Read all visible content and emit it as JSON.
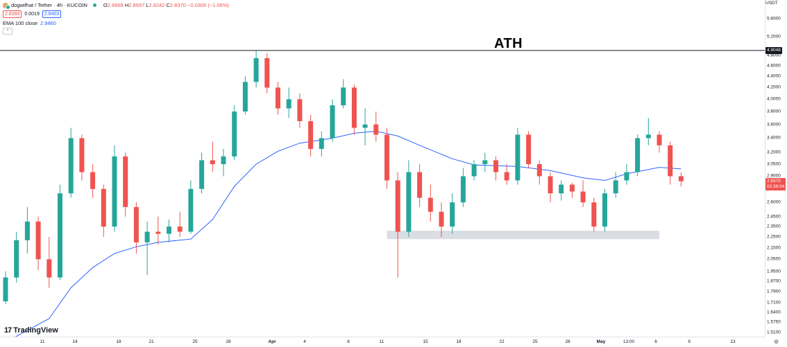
{
  "legend": {
    "symbol": "dogwifhat / Tether · 4h · KUCOIN",
    "open_label": "O",
    "open": "2.8668",
    "high_label": "H",
    "high": "2.8997",
    "low_label": "L",
    "low": "2.8242",
    "close_label": "C",
    "close": "2.8370",
    "change": "−0.0305 (−1.06%)",
    "bid": "2.8384",
    "spread": "0.0019",
    "ask": "2.8403",
    "indicator_label": "EMA 100 close",
    "indicator_value": "2.9860",
    "collapse_glyph": "^"
  },
  "annotation": {
    "ath": "ATH"
  },
  "price_axis": {
    "currency": "USDT",
    "ticks": [
      "5.6000",
      "5.2000",
      "4.8000",
      "4.6000",
      "4.4000",
      "4.2000",
      "4.0000",
      "3.8000",
      "3.6000",
      "3.4000",
      "3.2000",
      "3.0500",
      "2.9000",
      "2.6000",
      "2.4500",
      "2.3500",
      "2.2500",
      "2.1500",
      "2.0500",
      "1.9500",
      "1.8700",
      "1.7900",
      "1.7100",
      "1.6400",
      "1.5750",
      "1.5100"
    ],
    "ath_price": "4.9048",
    "last_price": "2.8370",
    "countdown": "02:39:04"
  },
  "time_axis": {
    "labels": [
      {
        "text": "11",
        "bold": false
      },
      {
        "text": "14",
        "bold": false
      },
      {
        "text": "18",
        "bold": false
      },
      {
        "text": "21",
        "bold": false
      },
      {
        "text": "25",
        "bold": false
      },
      {
        "text": "28",
        "bold": false
      },
      {
        "text": "Apr",
        "bold": true
      },
      {
        "text": "4",
        "bold": false
      },
      {
        "text": "8",
        "bold": false
      },
      {
        "text": "11",
        "bold": false
      },
      {
        "text": "15",
        "bold": false
      },
      {
        "text": "18",
        "bold": false
      },
      {
        "text": "22",
        "bold": false
      },
      {
        "text": "25",
        "bold": false
      },
      {
        "text": "28",
        "bold": false
      },
      {
        "text": "May",
        "bold": true
      },
      {
        "text": "13:00",
        "bold": false
      },
      {
        "text": "6",
        "bold": false
      },
      {
        "text": "9",
        "bold": false
      },
      {
        "text": "13",
        "bold": false
      }
    ]
  },
  "branding": {
    "logo_mark": "17",
    "logo_text": "TradingView"
  },
  "settings_icon": "gear-icon",
  "colors": {
    "up": "#26a69a",
    "down": "#ef5350",
    "ema": "#2962ff",
    "zone": "#d1d4dc",
    "ath_line": "#131722"
  },
  "chart_data": {
    "type": "candlestick",
    "symbol": "dogwifhat / Tether",
    "interval": "4h",
    "exchange": "KUCOIN",
    "x_range": [
      "Mar 8",
      "May 13"
    ],
    "y_range": [
      1.48,
      5.7
    ],
    "y_scale": "log",
    "ath_level": 4.9048,
    "support_zone": {
      "from": "Apr 12",
      "to": "May 7",
      "low": 2.23,
      "high": 2.31
    },
    "ema100": [
      {
        "x": "Mar 8",
        "y": 1.45
      },
      {
        "x": "Mar 12",
        "y": 1.6
      },
      {
        "x": "Mar 14",
        "y": 1.82
      },
      {
        "x": "Mar 16",
        "y": 1.98
      },
      {
        "x": "Mar 18",
        "y": 2.1
      },
      {
        "x": "Mar 20",
        "y": 2.16
      },
      {
        "x": "Mar 22",
        "y": 2.2
      },
      {
        "x": "Mar 25",
        "y": 2.23
      },
      {
        "x": "Mar 27",
        "y": 2.42
      },
      {
        "x": "Mar 29",
        "y": 2.78
      },
      {
        "x": "Mar 31",
        "y": 3.05
      },
      {
        "x": "Apr 2",
        "y": 3.22
      },
      {
        "x": "Apr 4",
        "y": 3.33
      },
      {
        "x": "Apr 7",
        "y": 3.4
      },
      {
        "x": "Apr 9",
        "y": 3.47
      },
      {
        "x": "Apr 11",
        "y": 3.5
      },
      {
        "x": "Apr 13",
        "y": 3.43
      },
      {
        "x": "Apr 15",
        "y": 3.3
      },
      {
        "x": "Apr 18",
        "y": 3.12
      },
      {
        "x": "Apr 20",
        "y": 3.04
      },
      {
        "x": "Apr 24",
        "y": 3.02
      },
      {
        "x": "Apr 27",
        "y": 2.97
      },
      {
        "x": "Apr 30",
        "y": 2.88
      },
      {
        "x": "May 2",
        "y": 2.85
      },
      {
        "x": "May 4",
        "y": 2.93
      },
      {
        "x": "May 7",
        "y": 3.01
      },
      {
        "x": "May 9",
        "y": 2.99
      }
    ],
    "candles": [
      {
        "x": "Mar 8",
        "o": 1.72,
        "h": 1.95,
        "l": 1.7,
        "c": 1.9
      },
      {
        "x": "Mar 9",
        "o": 1.9,
        "h": 2.3,
        "l": 1.86,
        "c": 2.22
      },
      {
        "x": "Mar 10",
        "o": 2.22,
        "h": 2.55,
        "l": 2.1,
        "c": 2.4
      },
      {
        "x": "Mar 11",
        "o": 2.4,
        "h": 2.45,
        "l": 1.96,
        "c": 2.05
      },
      {
        "x": "Mar 12",
        "o": 2.05,
        "h": 2.25,
        "l": 1.82,
        "c": 1.9
      },
      {
        "x": "Mar 13",
        "o": 1.9,
        "h": 2.8,
        "l": 1.88,
        "c": 2.7
      },
      {
        "x": "Mar 14",
        "o": 2.7,
        "h": 3.55,
        "l": 2.65,
        "c": 3.4
      },
      {
        "x": "Mar 15",
        "o": 3.4,
        "h": 3.45,
        "l": 2.85,
        "c": 2.95
      },
      {
        "x": "Mar 16",
        "o": 2.95,
        "h": 3.05,
        "l": 2.65,
        "c": 2.75
      },
      {
        "x": "Mar 17",
        "o": 2.75,
        "h": 2.8,
        "l": 2.25,
        "c": 2.35
      },
      {
        "x": "Mar 18",
        "o": 2.35,
        "h": 3.3,
        "l": 2.3,
        "c": 3.15
      },
      {
        "x": "Mar 19",
        "o": 3.15,
        "h": 3.2,
        "l": 2.45,
        "c": 2.55
      },
      {
        "x": "Mar 20",
        "o": 2.55,
        "h": 2.6,
        "l": 2.1,
        "c": 2.2
      },
      {
        "x": "Mar 21",
        "o": 2.2,
        "h": 2.4,
        "l": 1.92,
        "c": 2.3
      },
      {
        "x": "Mar 22",
        "o": 2.3,
        "h": 2.45,
        "l": 2.18,
        "c": 2.28
      },
      {
        "x": "Mar 23",
        "o": 2.28,
        "h": 2.42,
        "l": 2.2,
        "c": 2.35
      },
      {
        "x": "Mar 24",
        "o": 2.35,
        "h": 2.5,
        "l": 2.25,
        "c": 2.3
      },
      {
        "x": "Mar 25",
        "o": 2.3,
        "h": 2.85,
        "l": 2.28,
        "c": 2.75
      },
      {
        "x": "Mar 26",
        "o": 2.75,
        "h": 3.2,
        "l": 2.7,
        "c": 3.1
      },
      {
        "x": "Mar 27",
        "o": 3.1,
        "h": 3.35,
        "l": 2.95,
        "c": 3.05
      },
      {
        "x": "Mar 28",
        "o": 3.05,
        "h": 3.25,
        "l": 2.9,
        "c": 3.15
      },
      {
        "x": "Mar 29",
        "o": 3.15,
        "h": 3.9,
        "l": 3.1,
        "c": 3.8
      },
      {
        "x": "Mar 30",
        "o": 3.8,
        "h": 4.4,
        "l": 3.75,
        "c": 4.3
      },
      {
        "x": "Mar 31",
        "o": 4.3,
        "h": 4.9,
        "l": 4.2,
        "c": 4.75
      },
      {
        "x": "Apr 1",
        "o": 4.75,
        "h": 4.85,
        "l": 4.1,
        "c": 4.2
      },
      {
        "x": "Apr 2",
        "o": 4.2,
        "h": 4.3,
        "l": 3.75,
        "c": 3.85
      },
      {
        "x": "Apr 3",
        "o": 3.85,
        "h": 4.2,
        "l": 3.7,
        "c": 4.0
      },
      {
        "x": "Apr 4",
        "o": 4.0,
        "h": 4.1,
        "l": 3.55,
        "c": 3.65
      },
      {
        "x": "Apr 5",
        "o": 3.65,
        "h": 3.75,
        "l": 3.15,
        "c": 3.25
      },
      {
        "x": "Apr 6",
        "o": 3.25,
        "h": 3.5,
        "l": 3.15,
        "c": 3.4
      },
      {
        "x": "Apr 7",
        "o": 3.4,
        "h": 4.0,
        "l": 3.35,
        "c": 3.9
      },
      {
        "x": "Apr 8",
        "o": 3.9,
        "h": 4.35,
        "l": 3.85,
        "c": 4.2
      },
      {
        "x": "Apr 9",
        "o": 4.2,
        "h": 4.25,
        "l": 3.45,
        "c": 3.55
      },
      {
        "x": "Apr 10",
        "o": 3.55,
        "h": 3.85,
        "l": 3.3,
        "c": 3.6
      },
      {
        "x": "Apr 11",
        "o": 3.6,
        "h": 3.8,
        "l": 3.35,
        "c": 3.45
      },
      {
        "x": "Apr 12",
        "o": 3.45,
        "h": 3.55,
        "l": 2.75,
        "c": 2.85
      },
      {
        "x": "Apr 13",
        "o": 2.85,
        "h": 2.95,
        "l": 1.9,
        "c": 2.3
      },
      {
        "x": "Apr 14",
        "o": 2.3,
        "h": 3.1,
        "l": 2.25,
        "c": 2.95
      },
      {
        "x": "Apr 15",
        "o": 2.95,
        "h": 3.05,
        "l": 2.55,
        "c": 2.65
      },
      {
        "x": "Apr 16",
        "o": 2.65,
        "h": 2.8,
        "l": 2.4,
        "c": 2.5
      },
      {
        "x": "Apr 17",
        "o": 2.5,
        "h": 2.6,
        "l": 2.25,
        "c": 2.35
      },
      {
        "x": "Apr 18",
        "o": 2.35,
        "h": 2.7,
        "l": 2.28,
        "c": 2.6
      },
      {
        "x": "Apr 19",
        "o": 2.6,
        "h": 3.0,
        "l": 2.55,
        "c": 2.9
      },
      {
        "x": "Apr 20",
        "o": 2.9,
        "h": 3.1,
        "l": 2.85,
        "c": 3.05
      },
      {
        "x": "Apr 21",
        "o": 3.05,
        "h": 3.2,
        "l": 2.95,
        "c": 3.1
      },
      {
        "x": "Apr 22",
        "o": 3.1,
        "h": 3.15,
        "l": 2.85,
        "c": 2.95
      },
      {
        "x": "Apr 23",
        "o": 2.95,
        "h": 3.05,
        "l": 2.8,
        "c": 2.85
      },
      {
        "x": "Apr 24",
        "o": 2.85,
        "h": 3.55,
        "l": 2.8,
        "c": 3.45
      },
      {
        "x": "Apr 25",
        "o": 3.45,
        "h": 3.5,
        "l": 3.0,
        "c": 3.05
      },
      {
        "x": "Apr 26",
        "o": 3.05,
        "h": 3.1,
        "l": 2.8,
        "c": 2.9
      },
      {
        "x": "Apr 27",
        "o": 2.9,
        "h": 2.95,
        "l": 2.6,
        "c": 2.7
      },
      {
        "x": "Apr 28",
        "o": 2.7,
        "h": 2.85,
        "l": 2.62,
        "c": 2.8
      },
      {
        "x": "Apr 29",
        "o": 2.8,
        "h": 2.82,
        "l": 2.65,
        "c": 2.72
      },
      {
        "x": "Apr 30",
        "o": 2.72,
        "h": 2.85,
        "l": 2.55,
        "c": 2.6
      },
      {
        "x": "May 1",
        "o": 2.6,
        "h": 2.65,
        "l": 2.3,
        "c": 2.35
      },
      {
        "x": "May 2",
        "o": 2.35,
        "h": 2.75,
        "l": 2.3,
        "c": 2.7
      },
      {
        "x": "May 3",
        "o": 2.7,
        "h": 2.95,
        "l": 2.65,
        "c": 2.85
      },
      {
        "x": "May 4",
        "o": 2.85,
        "h": 3.05,
        "l": 2.8,
        "c": 2.95
      },
      {
        "x": "May 5",
        "o": 2.95,
        "h": 3.45,
        "l": 2.9,
        "c": 3.4
      },
      {
        "x": "May 6",
        "o": 3.4,
        "h": 3.7,
        "l": 3.3,
        "c": 3.45
      },
      {
        "x": "May 7",
        "o": 3.45,
        "h": 3.5,
        "l": 3.2,
        "c": 3.3
      },
      {
        "x": "May 8",
        "o": 3.3,
        "h": 3.35,
        "l": 2.8,
        "c": 2.9
      },
      {
        "x": "May 9",
        "o": 2.9,
        "h": 2.95,
        "l": 2.78,
        "c": 2.84
      }
    ]
  }
}
